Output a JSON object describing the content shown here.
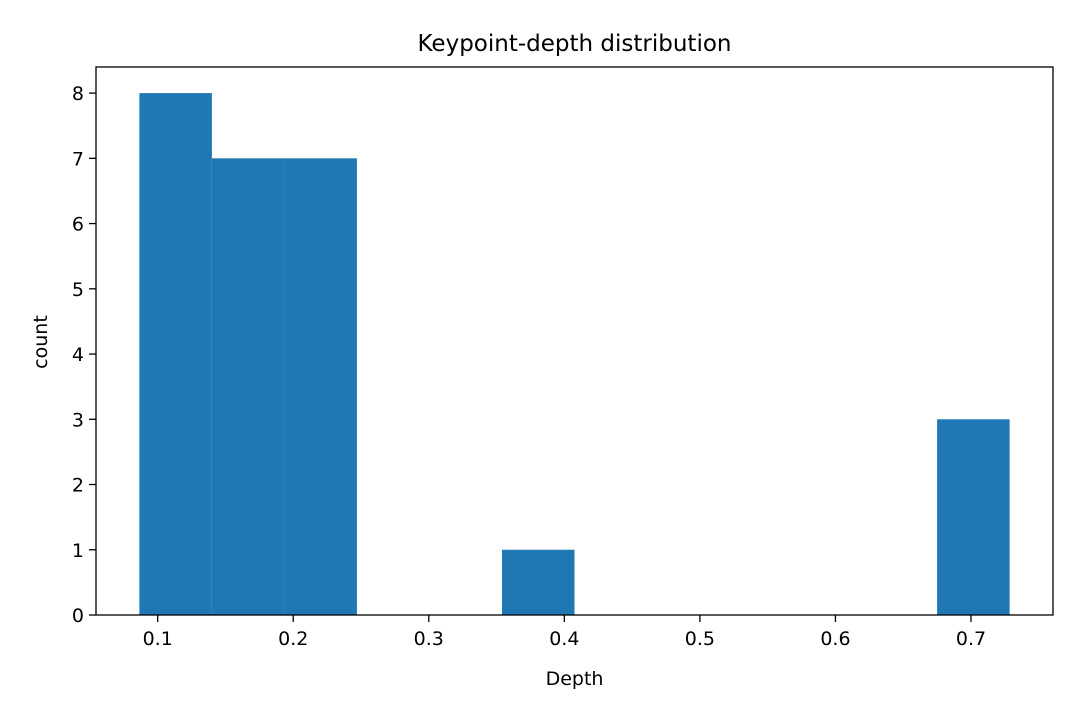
{
  "chart_data": {
    "type": "bar",
    "title": "Keypoint-depth distribution",
    "xlabel": "Depth",
    "ylabel": "count",
    "bins": [
      {
        "x0": 0.0865,
        "x1": 0.14,
        "count": 8
      },
      {
        "x0": 0.14,
        "x1": 0.1935,
        "count": 7
      },
      {
        "x0": 0.1935,
        "x1": 0.247,
        "count": 7
      },
      {
        "x0": 0.247,
        "x1": 0.3005,
        "count": 0
      },
      {
        "x0": 0.3005,
        "x1": 0.354,
        "count": 0
      },
      {
        "x0": 0.354,
        "x1": 0.4075,
        "count": 1
      },
      {
        "x0": 0.4075,
        "x1": 0.461,
        "count": 0
      },
      {
        "x0": 0.461,
        "x1": 0.5145,
        "count": 0
      },
      {
        "x0": 0.5145,
        "x1": 0.568,
        "count": 0
      },
      {
        "x0": 0.568,
        "x1": 0.6215,
        "count": 0
      },
      {
        "x0": 0.6215,
        "x1": 0.675,
        "count": 0
      },
      {
        "x0": 0.675,
        "x1": 0.7285,
        "count": 3
      }
    ],
    "xlim": [
      0.0545,
      0.7605
    ],
    "ylim": [
      0,
      8.4
    ],
    "xticks": [
      {
        "value": 0.1,
        "label": "0.1"
      },
      {
        "value": 0.2,
        "label": "0.2"
      },
      {
        "value": 0.3,
        "label": "0.3"
      },
      {
        "value": 0.4,
        "label": "0.4"
      },
      {
        "value": 0.5,
        "label": "0.5"
      },
      {
        "value": 0.6,
        "label": "0.6"
      },
      {
        "value": 0.7,
        "label": "0.7"
      }
    ],
    "yticks": [
      {
        "value": 0,
        "label": "0"
      },
      {
        "value": 1,
        "label": "1"
      },
      {
        "value": 2,
        "label": "2"
      },
      {
        "value": 3,
        "label": "3"
      },
      {
        "value": 4,
        "label": "4"
      },
      {
        "value": 5,
        "label": "5"
      },
      {
        "value": 6,
        "label": "6"
      },
      {
        "value": 7,
        "label": "7"
      },
      {
        "value": 8,
        "label": "8"
      }
    ],
    "grid": false,
    "legend": "none",
    "bar_color": "#1f77b4"
  }
}
